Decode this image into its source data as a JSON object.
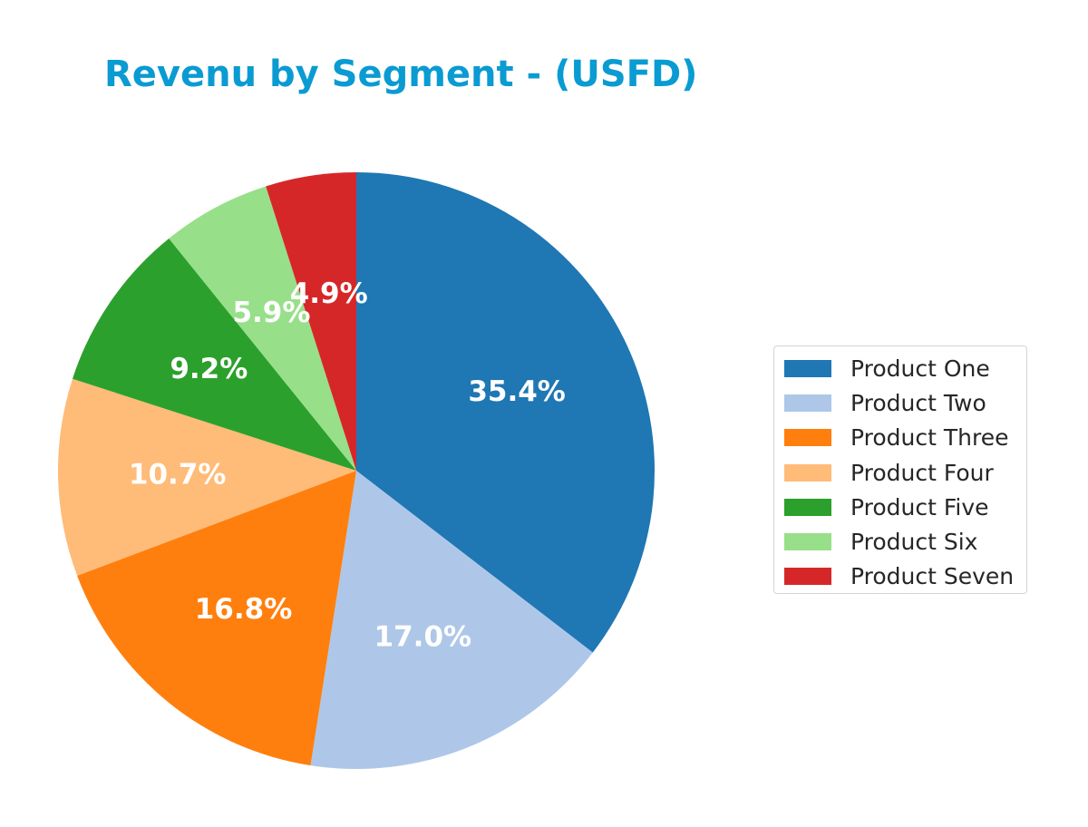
{
  "chart_data": {
    "type": "pie",
    "title": "Revenu by Segment - (USFD)",
    "start_angle_deg": 90,
    "direction": "clockwise",
    "legend_position": "right",
    "slices": [
      {
        "label": "Product One",
        "value": 35.4,
        "value_label": "35.4%",
        "color": "#1f77b4"
      },
      {
        "label": "Product Two",
        "value": 17.0,
        "value_label": "17.0%",
        "color": "#aec7e8"
      },
      {
        "label": "Product Three",
        "value": 16.8,
        "value_label": "16.8%",
        "color": "#ff7f0e"
      },
      {
        "label": "Product Four",
        "value": 10.7,
        "value_label": "10.7%",
        "color": "#ffbb78"
      },
      {
        "label": "Product Five",
        "value": 9.2,
        "value_label": "9.2%",
        "color": "#2ca02c"
      },
      {
        "label": "Product Six",
        "value": 5.9,
        "value_label": "5.9%",
        "color": "#98df8a"
      },
      {
        "label": "Product Seven",
        "value": 4.9,
        "value_label": "4.9%",
        "color": "#d62728"
      }
    ]
  }
}
